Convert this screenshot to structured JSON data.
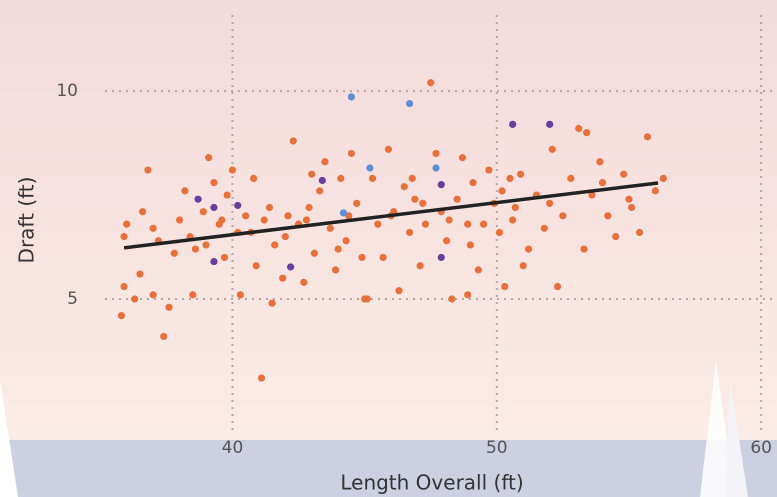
{
  "chart_data": {
    "type": "scatter",
    "x_label": "Length Overall (ft)",
    "y_label": "Draft (ft)",
    "xlim": [
      34.8,
      60.6
    ],
    "ylim": [
      1.85,
      12.19
    ],
    "xticks": [
      40,
      50,
      60
    ],
    "yticks": [
      5,
      10
    ],
    "grid": true,
    "series": [
      {
        "color": "#e8703a",
        "x": [
          35.9,
          35.9,
          35.8,
          36.0,
          36.3,
          36.6,
          36.8,
          37.0,
          37.2,
          37.4,
          37.6,
          37.8,
          38.0,
          38.2,
          38.4,
          38.6,
          38.9,
          39.1,
          39.3,
          39.5,
          39.7,
          39.8,
          40.0,
          40.2,
          40.3,
          40.5,
          40.7,
          40.9,
          41.1,
          41.2,
          41.4,
          41.6,
          41.9,
          42.1,
          42.3,
          42.5,
          42.7,
          42.9,
          43.1,
          43.3,
          43.5,
          43.7,
          43.9,
          44.1,
          44.3,
          44.5,
          44.7,
          44.9,
          45.1,
          45.3,
          45.5,
          45.7,
          45.9,
          46.1,
          46.3,
          46.5,
          46.7,
          46.9,
          47.1,
          47.3,
          47.5,
          47.7,
          47.9,
          48.1,
          48.3,
          48.5,
          48.7,
          48.9,
          49.1,
          49.3,
          49.5,
          49.7,
          49.9,
          50.1,
          50.3,
          50.5,
          50.7,
          50.9,
          51.2,
          51.5,
          51.8,
          52.1,
          52.3,
          52.5,
          52.8,
          53.1,
          53.3,
          53.6,
          53.9,
          54.2,
          54.5,
          54.8,
          55.1,
          55.4,
          55.7,
          56.0,
          56.3,
          53.4,
          50.2,
          46.0,
          44.0,
          42.0,
          39.0,
          37.0,
          36.5,
          38.5,
          45.0,
          48.9,
          51.0,
          54.0,
          40.8,
          43.0,
          47.2,
          49.0,
          52.0,
          55.0,
          41.5,
          44.4,
          46.8,
          42.8,
          39.6,
          48.2,
          50.6
        ],
        "y": [
          6.5,
          5.3,
          4.6,
          6.8,
          5.0,
          7.1,
          8.1,
          5.1,
          6.4,
          4.1,
          4.8,
          6.1,
          6.9,
          7.6,
          6.5,
          6.2,
          7.1,
          8.4,
          7.8,
          6.8,
          6.0,
          7.5,
          8.1,
          6.6,
          5.1,
          7.0,
          6.6,
          5.8,
          3.1,
          6.9,
          7.2,
          6.3,
          5.5,
          7.0,
          8.8,
          6.8,
          5.4,
          7.2,
          6.1,
          7.6,
          8.3,
          6.7,
          5.7,
          7.9,
          6.4,
          8.5,
          7.3,
          6.0,
          5.0,
          7.9,
          6.8,
          6.0,
          8.6,
          7.1,
          5.2,
          7.7,
          6.6,
          7.4,
          5.8,
          6.8,
          10.2,
          8.5,
          7.1,
          6.4,
          5.0,
          7.4,
          8.4,
          6.8,
          7.8,
          5.7,
          6.8,
          8.1,
          7.3,
          6.6,
          5.3,
          7.9,
          7.2,
          8.0,
          6.2,
          7.5,
          6.7,
          8.6,
          5.3,
          7.0,
          7.9,
          9.1,
          6.2,
          7.5,
          8.3,
          7.0,
          6.5,
          8.0,
          7.2,
          6.6,
          8.9,
          7.6,
          7.9,
          9.0,
          7.6,
          7.0,
          6.2,
          6.5,
          6.3,
          6.7,
          5.6,
          5.1,
          5.0,
          5.1,
          5.8,
          7.8,
          7.9,
          8.0,
          7.3,
          6.3,
          7.3,
          7.4,
          4.9,
          7.0,
          7.9,
          6.9,
          6.9,
          6.9,
          6.9
        ]
      },
      {
        "color": "#5b8fd6",
        "x": [
          44.5,
          46.7,
          45.2,
          47.7,
          44.2
        ],
        "y": [
          9.86,
          9.7,
          8.15,
          8.15,
          7.07
        ]
      },
      {
        "color": "#6a3d9a",
        "x": [
          50.6,
          52.0,
          43.4,
          47.9,
          40.2,
          39.3,
          38.7,
          42.2,
          47.9,
          39.3
        ],
        "y": [
          9.2,
          9.2,
          7.85,
          7.75,
          7.25,
          7.2,
          7.4,
          5.77,
          6.0,
          5.9
        ]
      }
    ],
    "trend": {
      "color": "#222222",
      "x": [
        35.9,
        56.1
      ],
      "y": [
        6.23,
        7.79
      ]
    }
  }
}
